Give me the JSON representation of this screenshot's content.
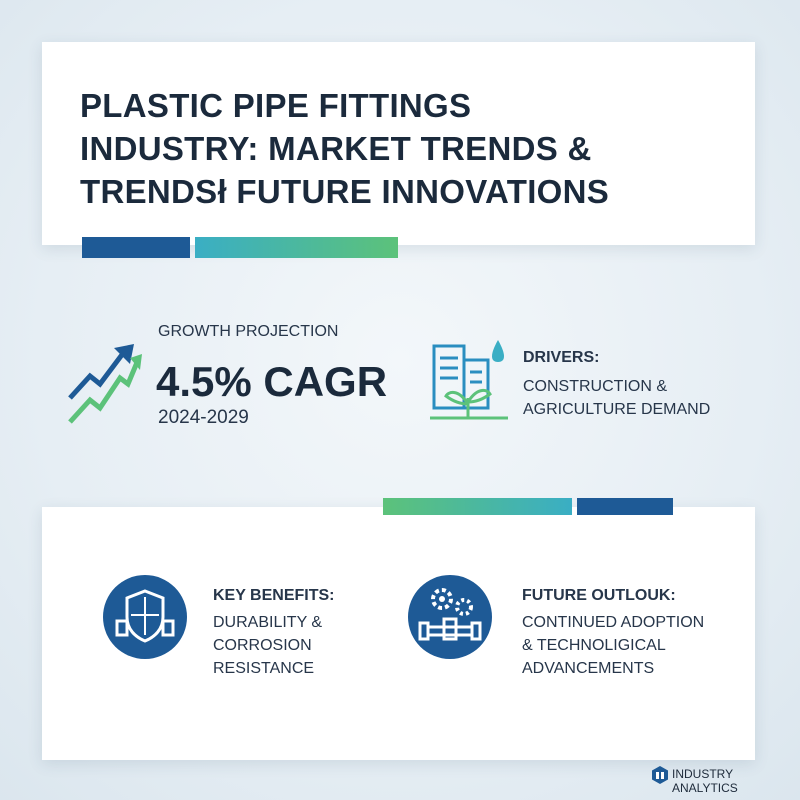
{
  "header": {
    "title_lines": [
      "PLASTIC PIPE FITTINGS",
      "INDUSTRY: MARKET TRENDS &",
      "TRENDSł FUTURE INNOVATIONS"
    ]
  },
  "growth": {
    "label": "GROWTH PROJECTION",
    "value": "4.5% CAGR",
    "period": "2024-2029"
  },
  "drivers": {
    "title": "DRIVERS:",
    "lines": [
      "CONSTRUCTION &",
      "AGRICULTURE DEMAND"
    ]
  },
  "benefits": {
    "title": "KEY BENEFITS:",
    "lines": [
      "DURABILITY &",
      "CORROSION",
      "RESISTANCE"
    ]
  },
  "outlook": {
    "title": "FUTURE OUTLOUK:",
    "lines": [
      "CONTINUED ADOPTION",
      "& TECHNOLIGICAL",
      "ADVANCEMENTS"
    ]
  },
  "footer": {
    "brand": "INDUSTRY ANALYTICS"
  }
}
